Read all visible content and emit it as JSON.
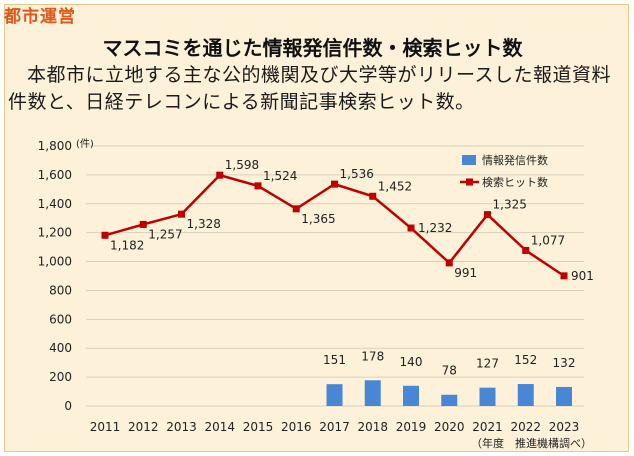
{
  "header": {
    "tag": "都市運営",
    "title": "マスコミを通じた情報発信件数・検索ヒット数",
    "description": "本都市に立地する主な公的機関及び大学等がリリースした報道資料件数と、日経テレコンによる新聞記事検索ヒット数。"
  },
  "chart_data": {
    "type": "bar+line",
    "categories": [
      "2011",
      "2012",
      "2013",
      "2014",
      "2015",
      "2016",
      "2017",
      "2018",
      "2019",
      "2020",
      "2021",
      "2022",
      "2023"
    ],
    "series": [
      {
        "name": "情報発信件数",
        "type": "bar",
        "color": "#4a86d6",
        "values": [
          null,
          null,
          null,
          null,
          null,
          null,
          151,
          178,
          140,
          78,
          127,
          152,
          132
        ]
      },
      {
        "name": "検索ヒット数",
        "type": "line",
        "color": "#c00000",
        "values": [
          1182,
          1257,
          1328,
          1598,
          1524,
          1365,
          1536,
          1452,
          1232,
          991,
          1325,
          1077,
          901
        ]
      }
    ],
    "y_unit": "(件)",
    "ylim": [
      0,
      1800
    ],
    "yticks": [
      0,
      200,
      400,
      600,
      800,
      1000,
      1200,
      1400,
      1600,
      1800
    ],
    "ytick_labels": [
      "0",
      "200",
      "400",
      "600",
      "800",
      "1,000",
      "1,200",
      "1,400",
      "1,600",
      "1,800"
    ],
    "grid": true,
    "legend_position": "top-right",
    "source_note": "（年度　推進機構調べ）"
  }
}
